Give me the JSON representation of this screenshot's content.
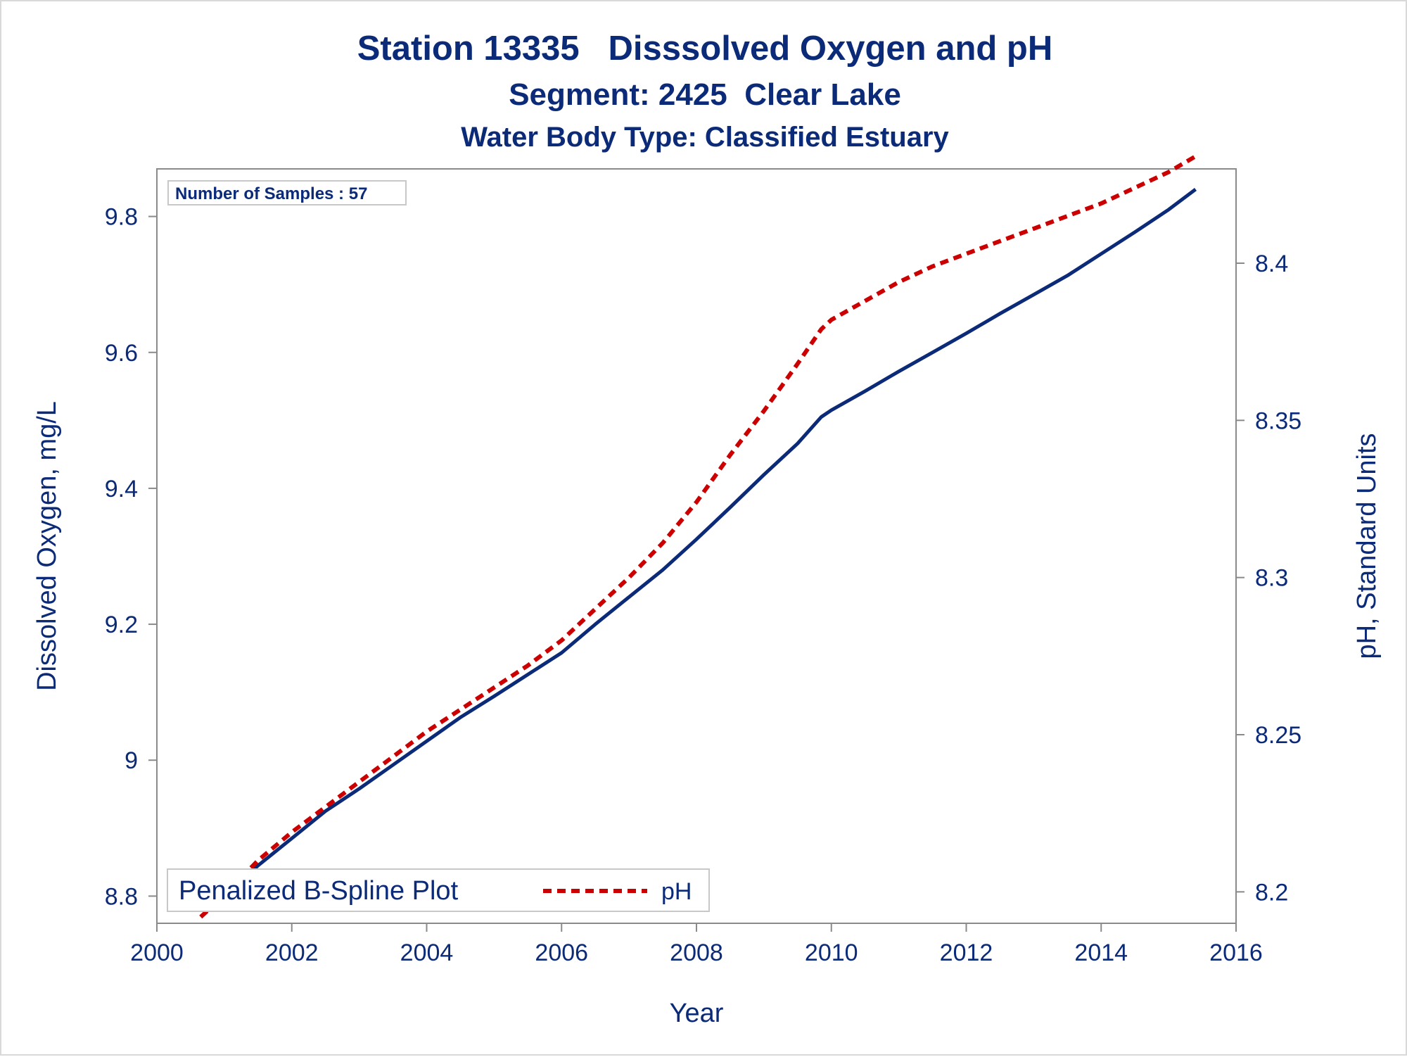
{
  "chart_data": {
    "type": "line",
    "title": "Station 13335   Disssolved Oxygen and pH",
    "subtitle": "Segment: 2425  Clear Lake",
    "subtitle2": "Water Body Type: Classified Estuary",
    "xlabel": "Year",
    "ylabel_left": "Dissolved Oxygen, mg/L",
    "ylabel_right": "pH, Standard Units",
    "xlim": [
      2000,
      2016
    ],
    "ylim_left": [
      8.76,
      9.87
    ],
    "ylim_right": [
      8.19,
      8.43
    ],
    "xticks": [
      2000,
      2002,
      2004,
      2006,
      2008,
      2010,
      2012,
      2014,
      2016
    ],
    "xtick_labels": [
      "2000",
      "2002",
      "2004",
      "2006",
      "2008",
      "2010",
      "2012",
      "2014",
      "2016"
    ],
    "yticks_left": [
      8.8,
      9.0,
      9.2,
      9.4,
      9.6,
      9.8
    ],
    "ytick_labels_left": [
      "8.8",
      "9",
      "9.2",
      "9.4",
      "9.6",
      "9.8"
    ],
    "yticks_right": [
      8.2,
      8.25,
      8.3,
      8.35,
      8.4
    ],
    "ytick_labels_right": [
      "8.2",
      "8.25",
      "8.3",
      "8.35",
      "8.4"
    ],
    "grid": false,
    "legend": {
      "position": "bottom-left",
      "title": "Penalized B-Spline Plot",
      "entries": [
        "pH"
      ]
    },
    "inset_label": "Number of Samples : 57",
    "series": [
      {
        "axis": "left",
        "color": "#0b2a78",
        "style": "solid",
        "x": [
          2000.65,
          2001.0,
          2001.5,
          2002.0,
          2002.5,
          2003.0,
          2003.5,
          2004.0,
          2004.5,
          2005.0,
          2005.5,
          2006.0,
          2006.5,
          2007.0,
          2007.5,
          2008.0,
          2008.5,
          2009.0,
          2009.5,
          2009.85,
          2010.0,
          2010.5,
          2011.0,
          2011.5,
          2012.0,
          2012.5,
          2013.0,
          2013.5,
          2014.0,
          2014.5,
          2015.0,
          2015.4
        ],
        "y": [
          8.77,
          8.8,
          8.845,
          8.885,
          8.925,
          8.958,
          8.993,
          9.028,
          9.063,
          9.094,
          9.126,
          9.158,
          9.2,
          9.24,
          9.28,
          9.325,
          9.372,
          9.42,
          9.466,
          9.505,
          9.515,
          9.543,
          9.572,
          9.6,
          9.628,
          9.657,
          9.685,
          9.713,
          9.745,
          9.777,
          9.81,
          9.84
        ]
      },
      {
        "name": "pH",
        "axis": "right",
        "color": "#cc0000",
        "style": "dashed",
        "x": [
          2000.65,
          2001.0,
          2001.5,
          2002.0,
          2002.5,
          2003.0,
          2003.5,
          2004.0,
          2004.5,
          2005.0,
          2005.5,
          2006.0,
          2006.5,
          2007.0,
          2007.5,
          2008.0,
          2008.5,
          2009.0,
          2009.5,
          2009.85,
          2010.0,
          2010.5,
          2011.0,
          2011.5,
          2012.0,
          2012.5,
          2013.0,
          2013.5,
          2014.0,
          2014.5,
          2015.0,
          2015.4
        ],
        "y": [
          8.192,
          8.199,
          8.21,
          8.219,
          8.227,
          8.235,
          8.243,
          8.251,
          8.258,
          8.265,
          8.272,
          8.28,
          8.29,
          8.3,
          8.311,
          8.324,
          8.339,
          8.353,
          8.368,
          8.379,
          8.382,
          8.388,
          8.394,
          8.399,
          8.403,
          8.407,
          8.411,
          8.415,
          8.419,
          8.424,
          8.429,
          8.434
        ]
      }
    ]
  }
}
